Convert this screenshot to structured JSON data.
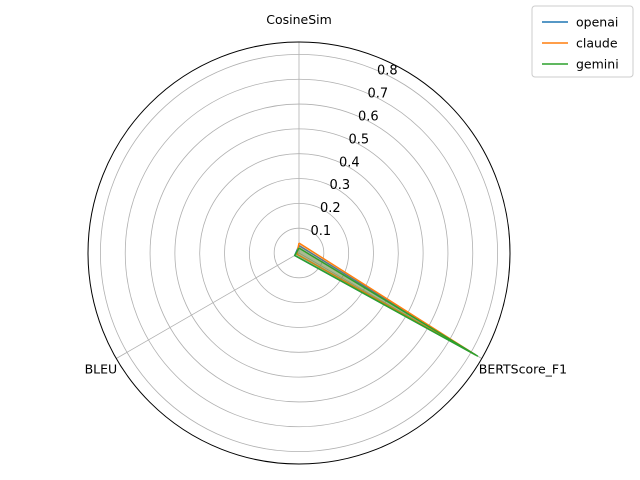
{
  "chart_data": {
    "type": "radar",
    "axes": [
      "CosineSim",
      "BERTScore_F1",
      "BLEU"
    ],
    "rlim": [
      0,
      0.85
    ],
    "r_ticks": [
      0.1,
      0.2,
      0.3,
      0.4,
      0.5,
      0.6,
      0.7,
      0.8
    ],
    "r_tick_labels": [
      "0.1",
      "0.2",
      "0.3",
      "0.4",
      "0.5",
      "0.6",
      "0.7",
      "0.8"
    ],
    "grid": true,
    "legend_position": "top-right",
    "series": [
      {
        "name": "openai",
        "color": "#1f77b4",
        "values": [
          0.03,
          0.82,
          0.02
        ]
      },
      {
        "name": "claude",
        "color": "#ff7f0e",
        "values": [
          0.04,
          0.82,
          0.01
        ]
      },
      {
        "name": "gemini",
        "color": "#2ca02c",
        "values": [
          0.02,
          0.83,
          0.02
        ]
      }
    ]
  }
}
